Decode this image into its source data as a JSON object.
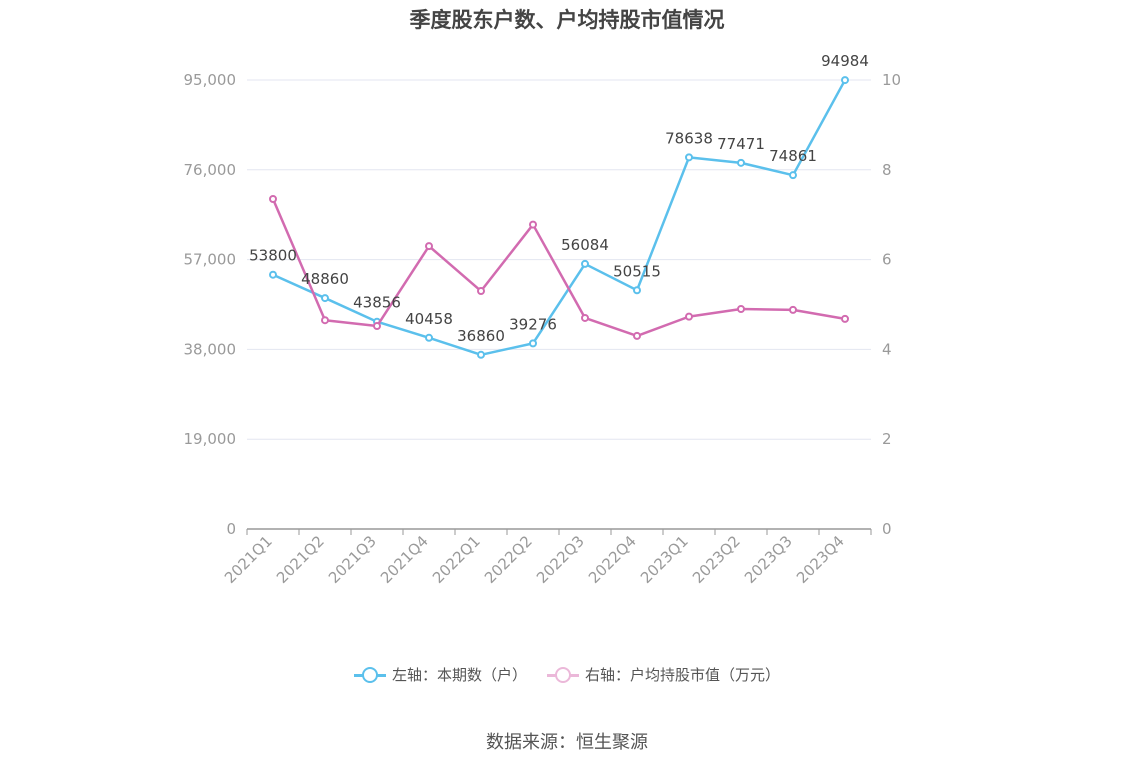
{
  "title": "季度股东户数、户均持股市值情况",
  "source": "数据来源：恒生聚源",
  "colors": {
    "left_series": "#5bc0ec",
    "right_series": "#d26bb0",
    "grid": "#e3e6f0",
    "axis": "#999999"
  },
  "chart_data": {
    "type": "line",
    "title": "季度股东户数、户均持股市值情况",
    "categories": [
      "2021Q1",
      "2021Q2",
      "2021Q3",
      "2021Q4",
      "2022Q1",
      "2022Q2",
      "2022Q3",
      "2022Q4",
      "2023Q1",
      "2023Q2",
      "2023Q3",
      "2023Q4"
    ],
    "y_left": {
      "min": 0,
      "max": 95000,
      "ticks": [
        0,
        19000,
        38000,
        57000,
        76000,
        95000
      ],
      "tick_labels": [
        "0",
        "19,000",
        "38,000",
        "57,000",
        "76,000",
        "95,000"
      ]
    },
    "y_right": {
      "min": 0,
      "max": 10,
      "ticks": [
        0,
        2,
        4,
        6,
        8,
        10
      ],
      "tick_labels": [
        "0",
        "2",
        "4",
        "6",
        "8",
        "10"
      ]
    },
    "grid": true,
    "legend_position": "bottom",
    "series": [
      {
        "name": "左轴：本期数（户）",
        "axis": "left",
        "color": "#5bc0ec",
        "show_labels": true,
        "values": [
          53800,
          48860,
          43856,
          40458,
          36860,
          39276,
          56084,
          50515,
          78638,
          77471,
          74861,
          94984
        ]
      },
      {
        "name": "右轴：户均持股市值（万元）",
        "axis": "right",
        "color": "#d26bb0",
        "show_labels": false,
        "values": [
          7.35,
          4.65,
          4.52,
          6.3,
          5.3,
          6.78,
          4.7,
          4.3,
          4.73,
          4.9,
          4.88,
          4.68
        ]
      }
    ]
  }
}
